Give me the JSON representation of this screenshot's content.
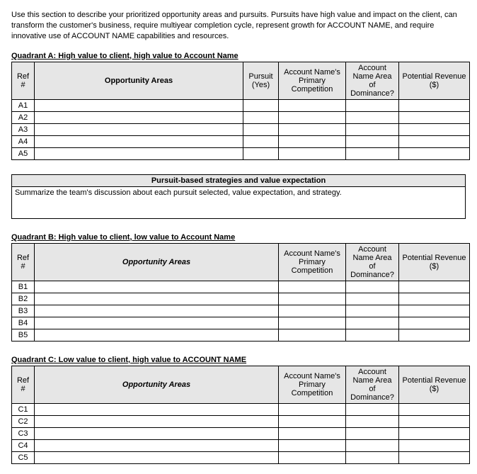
{
  "intro": "Use this section to describe your prioritized opportunity areas and pursuits.  Pursuits have high value and impact on the client, can transform the customer's business, require multiyear completion cycle, represent growth for ACCOUNT NAME, and require innovative use of ACCOUNT NAME capabilities and resources.",
  "columns": {
    "ref": "Ref #",
    "opportunity": "Opportunity Areas",
    "pursuit": "Pursuit (Yes)",
    "competition": "Account Name's Primary Competition",
    "dominance": "Account Name Area of Dominance?",
    "revenue": "Potential Revenue ($)"
  },
  "quadrantA": {
    "title": "Quadrant A: High value to client, high value to Account Name",
    "refs": [
      "A1",
      "A2",
      "A3",
      "A4",
      "A5"
    ]
  },
  "strategies": {
    "title": "Pursuit-based strategies and value expectation",
    "body": "Summarize the team's discussion about each pursuit selected, value expectation, and strategy."
  },
  "quadrantB": {
    "title": "Quadrant B: High value to client, low value to Account Name",
    "refs": [
      "B1",
      "B2",
      "B3",
      "B4",
      "B5"
    ]
  },
  "quadrantC": {
    "title": "Quadrant C: Low value to client, high value to ACCOUNT NAME",
    "refs": [
      "C1",
      "C2",
      "C3",
      "C4",
      "C5"
    ]
  },
  "styling": {
    "header_bg": "#e6e6e6",
    "border_color": "#000000",
    "font_size_pt": 8.5,
    "page_bg": "#ffffff"
  }
}
